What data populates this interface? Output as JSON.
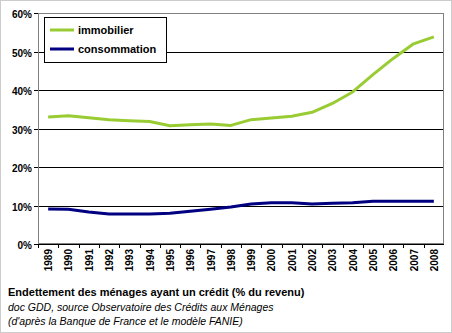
{
  "chart_data": {
    "type": "line",
    "title": "Endettement des ménages ayant un crédit (% du revenu)",
    "annotations": [
      "doc GDD, source Observatoire des Crédits aux Ménages",
      "(d'après la Banque de France et le modèle FANIE)"
    ],
    "categories": [
      "1989",
      "1990",
      "1991",
      "1992",
      "1993",
      "1994",
      "1995",
      "1996",
      "1997",
      "1998",
      "1999",
      "2000",
      "2001",
      "2002",
      "2003",
      "2004",
      "2005",
      "2006",
      "2007",
      "2008"
    ],
    "series": [
      {
        "name": "immobilier",
        "color": "#99cc33",
        "values": [
          33,
          33.3,
          32.8,
          32.3,
          32,
          31.8,
          30.7,
          31,
          31.2,
          30.8,
          32.3,
          32.7,
          33.2,
          34.2,
          36.5,
          39.5,
          44,
          48.2,
          52,
          53.8
        ]
      },
      {
        "name": "consommation",
        "color": "#000080",
        "values": [
          9.1,
          9,
          8.3,
          7.8,
          7.8,
          7.8,
          8,
          8.5,
          9,
          9.6,
          10.4,
          10.7,
          10.7,
          10.4,
          10.6,
          10.7,
          11.1,
          11.1,
          11.1,
          11.1
        ]
      }
    ],
    "ylim": [
      0,
      60
    ],
    "yticks": [
      {
        "value": 0,
        "label": "0%"
      },
      {
        "value": 10,
        "label": "10%"
      },
      {
        "value": 20,
        "label": "20%"
      },
      {
        "value": 30,
        "label": "30%"
      },
      {
        "value": 40,
        "label": "40%"
      },
      {
        "value": 50,
        "label": "50%"
      },
      {
        "value": 60,
        "label": "60%"
      }
    ],
    "grid": true,
    "legend": "top-left"
  }
}
